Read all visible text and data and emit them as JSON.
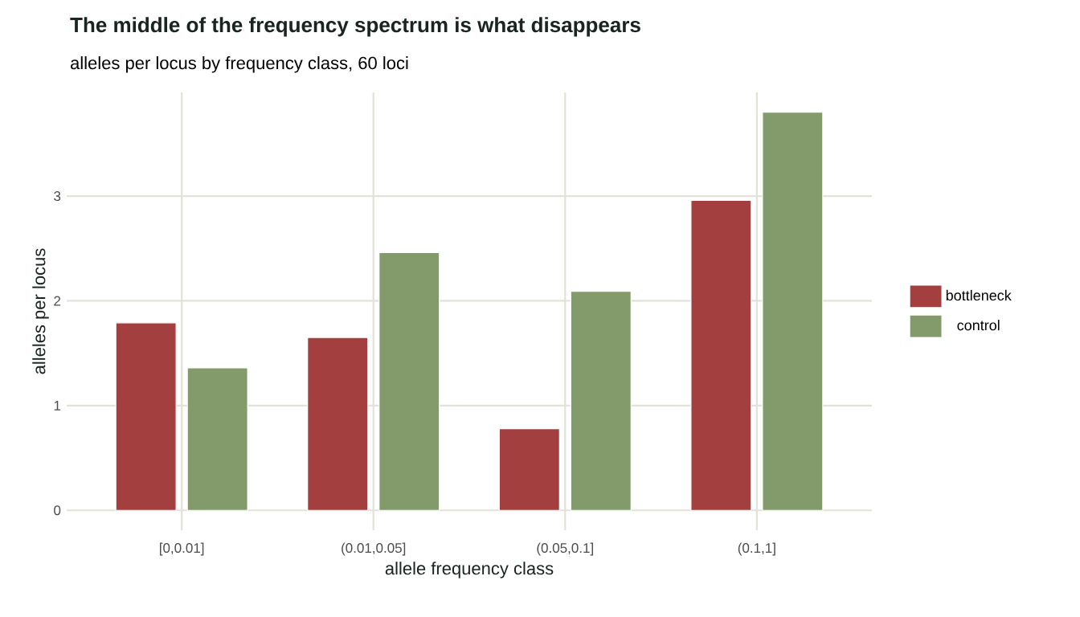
{
  "chart_data": {
    "type": "bar",
    "title": "The middle of the frequency spectrum is what disappears",
    "subtitle": "alleles per locus by frequency class, 60 loci",
    "xlabel": "allele frequency class",
    "ylabel": "alleles per locus",
    "categories": [
      "[0,0.01]",
      "(0.01,0.05]",
      "(0.05,0.1]",
      "(0.1,1]"
    ],
    "series": [
      {
        "name": "bottleneck",
        "color": "#a33f3f",
        "values": [
          1.79,
          1.65,
          0.78,
          2.96
        ]
      },
      {
        "name": "control",
        "color": "#839a6b",
        "values": [
          1.36,
          2.46,
          2.09,
          3.8
        ]
      }
    ],
    "ylim": [
      -0.19,
      3.99
    ],
    "yticks": [
      0,
      1,
      2,
      3
    ],
    "grid": true,
    "legend": "right"
  }
}
